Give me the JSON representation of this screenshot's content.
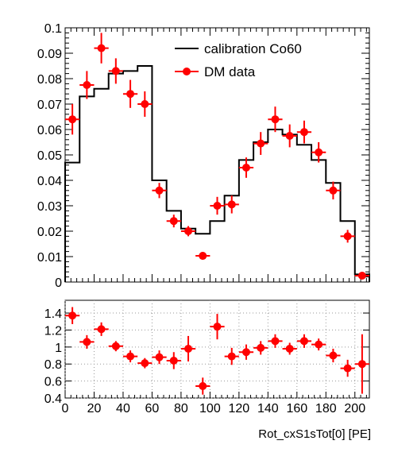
{
  "chart_data": [
    {
      "type": "histogram-with-points",
      "xlim": [
        0,
        210
      ],
      "ylim": [
        0,
        0.1
      ],
      "yticks": [
        "0",
        "0.01",
        "0.02",
        "0.03",
        "0.04",
        "0.05",
        "0.06",
        "0.07",
        "0.08",
        "0.09",
        "0.1"
      ],
      "grid": false,
      "legend_position": "top-right",
      "series": [
        {
          "name": "calibration Co60",
          "kind": "step",
          "color": "#000000",
          "bin_edges": [
            0,
            10,
            20,
            30,
            40,
            50,
            60,
            70,
            80,
            90,
            100,
            110,
            120,
            130,
            140,
            150,
            160,
            170,
            180,
            190,
            200,
            210
          ],
          "values": [
            0.047,
            0.073,
            0.076,
            0.082,
            0.083,
            0.085,
            0.04,
            0.028,
            0.021,
            0.019,
            0.024,
            0.034,
            0.048,
            0.055,
            0.06,
            0.058,
            0.054,
            0.048,
            0.039,
            0.024,
            0.003
          ]
        },
        {
          "name": "DM data",
          "kind": "points",
          "color": "#ff0000",
          "x": [
            5,
            15,
            25,
            35,
            45,
            55,
            65,
            75,
            85,
            95,
            105,
            115,
            125,
            135,
            145,
            155,
            165,
            175,
            185,
            195,
            205
          ],
          "y": [
            0.064,
            0.0775,
            0.092,
            0.083,
            0.074,
            0.07,
            0.036,
            0.024,
            0.02,
            0.0103,
            0.03,
            0.0305,
            0.045,
            0.0545,
            0.064,
            0.0575,
            0.059,
            0.051,
            0.036,
            0.018,
            0.0025
          ],
          "yerr": [
            0.006,
            0.0055,
            0.006,
            0.005,
            0.0055,
            0.005,
            0.003,
            0.0025,
            0.002,
            0.0015,
            0.0035,
            0.0035,
            0.004,
            0.0045,
            0.005,
            0.0045,
            0.0045,
            0.004,
            0.0035,
            0.0025,
            0.0012
          ]
        }
      ]
    },
    {
      "type": "scatter-ratio",
      "xlim": [
        0,
        210
      ],
      "ylim": [
        0.4,
        1.55
      ],
      "xticks": [
        "0",
        "20",
        "40",
        "60",
        "80",
        "100",
        "120",
        "140",
        "160",
        "180",
        "200"
      ],
      "yticks": [
        "0.4",
        "0.6",
        "0.8",
        "1",
        "1.2",
        "1.4"
      ],
      "grid": true,
      "xlabel": "Rot_cxS1sTot[0]  [PE]",
      "series": [
        {
          "kind": "points",
          "color": "#ff0000",
          "x": [
            5,
            15,
            25,
            35,
            45,
            55,
            65,
            75,
            85,
            95,
            105,
            115,
            125,
            135,
            145,
            155,
            165,
            175,
            185,
            195,
            205
          ],
          "y": [
            1.37,
            1.06,
            1.21,
            1.01,
            0.89,
            0.81,
            0.88,
            0.84,
            0.98,
            0.54,
            1.24,
            0.89,
            0.94,
            0.99,
            1.07,
            0.98,
            1.07,
            1.03,
            0.9,
            0.75,
            0.8
          ],
          "yerr": [
            0.1,
            0.08,
            0.08,
            0.06,
            0.07,
            0.06,
            0.08,
            0.1,
            0.15,
            0.1,
            0.15,
            0.1,
            0.09,
            0.08,
            0.08,
            0.07,
            0.08,
            0.07,
            0.08,
            0.1,
            0.35
          ]
        }
      ]
    }
  ]
}
